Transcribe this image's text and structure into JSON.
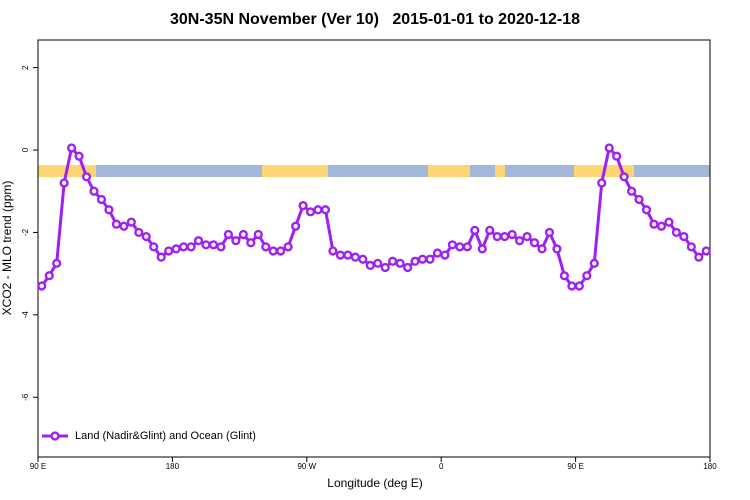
{
  "chart_data": {
    "type": "line",
    "title": "30N-35N November (Ver 10)   2015-01-01 to 2020-12-18",
    "xlabel": "Longitude (deg E)",
    "ylabel": "XCO2 - MLO trend (ppm)",
    "xlim": [
      90,
      540
    ],
    "ylim": [
      -7.45,
      2.67
    ],
    "xticks": [
      {
        "value": 90,
        "label": "90 E"
      },
      180,
      {
        "value": 270,
        "label": "90 W"
      },
      {
        "value": 360,
        "label": "0"
      },
      {
        "value": 450,
        "label": "90 E"
      },
      {
        "value": 540,
        "label": "180"
      }
    ],
    "yticks": [
      2,
      0,
      -2,
      -4,
      -6
    ],
    "legend": "bottom-left",
    "x": [
      92.5,
      97.5,
      102.5,
      107.5,
      112.5,
      117.5,
      122.5,
      127.5,
      132.5,
      137.5,
      142.5,
      147.5,
      152.5,
      157.5,
      162.5,
      167.5,
      172.5,
      177.5,
      182.5,
      187.5,
      192.5,
      197.5,
      202.5,
      207.5,
      212.5,
      217.5,
      222.5,
      227.5,
      232.5,
      237.5,
      242.5,
      247.5,
      252.5,
      257.5,
      262.5,
      267.5,
      272.5,
      277.5,
      282.5,
      287.5,
      292.5,
      297.5,
      302.5,
      307.5,
      312.5,
      317.5,
      322.5,
      327.5,
      332.5,
      337.5,
      342.5,
      347.5,
      352.5,
      357.5,
      362.5,
      367.5,
      372.5,
      377.5,
      382.5,
      387.5,
      392.5,
      397.5,
      402.5,
      407.5,
      412.5,
      417.5,
      422.5,
      427.5,
      432.5,
      437.5,
      442.5,
      447.5,
      452.5,
      457.5,
      462.5,
      467.5,
      472.5,
      477.5,
      482.5,
      487.5,
      492.5,
      497.5,
      502.5,
      507.5,
      512.5,
      517.5,
      522.5,
      527.5,
      532.5,
      537.5
    ],
    "series": [
      {
        "name": "Land (Nadir&Glint) and Ocean (Glint)",
        "color": "#a020f0",
        "values": [
          -3.3,
          -3.05,
          -2.75,
          -0.8,
          0.05,
          -0.15,
          -0.65,
          -1.0,
          -1.2,
          -1.45,
          -1.8,
          -1.85,
          -1.75,
          -2.0,
          -2.1,
          -2.35,
          -2.6,
          -2.45,
          -2.4,
          -2.35,
          -2.35,
          -2.2,
          -2.3,
          -2.3,
          -2.35,
          -2.05,
          -2.2,
          -2.05,
          -2.25,
          -2.05,
          -2.35,
          -2.45,
          -2.45,
          -2.35,
          -1.85,
          -1.35,
          -1.5,
          -1.45,
          -1.45,
          -2.45,
          -2.55,
          -2.55,
          -2.6,
          -2.65,
          -2.8,
          -2.75,
          -2.85,
          -2.7,
          -2.75,
          -2.85,
          -2.7,
          -2.65,
          -2.65,
          -2.5,
          -2.55,
          -2.3,
          -2.35,
          -2.35,
          -1.95,
          -2.4,
          -1.95,
          -2.1,
          -2.1,
          -2.05,
          -2.2,
          -2.1,
          -2.25,
          -2.4,
          -2.0,
          -2.4,
          -3.05,
          -3.3,
          -3.3,
          -3.05,
          -2.75,
          -0.8,
          0.05,
          -0.15,
          -0.65,
          -1.0,
          -1.2,
          -1.45,
          -1.8,
          -1.85,
          -1.75,
          -2.0,
          -2.1,
          -2.35,
          -2.6,
          -2.45
        ]
      }
    ]
  }
}
